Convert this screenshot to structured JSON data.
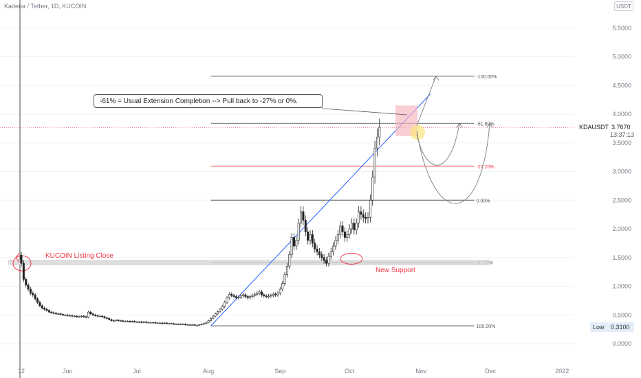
{
  "header": {
    "title": "Kadena / Tether, 1D, KUCOIN",
    "currency": "USDT"
  },
  "chart_data": {
    "type": "candlestick",
    "title": "Kadena / Tether, 1D, KUCOIN",
    "symbol": "KDAUSDT",
    "last_price": "3.7670",
    "countdown": "13:37:13",
    "low_label": "Low",
    "low_value": "0.3100",
    "y_ticks": [
      "5.5000",
      "5.0000",
      "4.5000",
      "4.0000",
      "3.5000",
      "3.0000",
      "2.5000",
      "2.0000",
      "1.5000",
      "1.0000",
      "0.5000",
      "0.0000"
    ],
    "ylim": [
      -0.1,
      5.85
    ],
    "x_ticks": [
      {
        "label": "12",
        "day": 0
      },
      {
        "label": "Jun",
        "day": 20
      },
      {
        "label": "Jul",
        "day": 50
      },
      {
        "label": "Aug",
        "day": 81
      },
      {
        "label": "Sep",
        "day": 112
      },
      {
        "label": "Oct",
        "day": 142
      },
      {
        "label": "Nov",
        "day": 173
      },
      {
        "label": "Dec",
        "day": 203
      },
      {
        "label": "2022",
        "day": 234
      }
    ],
    "fib_levels": [
      {
        "label": "100.00%",
        "price": 0.31,
        "color": "#555555"
      },
      {
        "label": "50.00%",
        "price": 1.42,
        "color": "#555555"
      },
      {
        "label": "0.00%",
        "price": 2.5,
        "color": "#555555"
      },
      {
        "label": "-27.20%",
        "price": 3.09,
        "color": "#f23645"
      },
      {
        "label": "-61.80%",
        "price": 3.84,
        "color": "#555555"
      },
      {
        "label": "-100.00%",
        "price": 4.66,
        "color": "#555555"
      }
    ],
    "fib_day_range": [
      82,
      196
    ],
    "annotations": {
      "box_text": "-61% = Usual Extension Completion --> Pull back to -27% or 0%.",
      "listing": "KUCOIN Listing Close",
      "support": "New Support"
    },
    "trendline": {
      "from": {
        "day": 82,
        "price": 0.31
      },
      "to": {
        "day": 177,
        "price": 4.35
      }
    },
    "closes": [
      1.4,
      1.12,
      1.02,
      0.95,
      0.88,
      0.85,
      0.78,
      0.72,
      0.66,
      0.62,
      0.6,
      0.58,
      0.55,
      0.54,
      0.53,
      0.52,
      0.52,
      0.51,
      0.5,
      0.5,
      0.49,
      0.49,
      0.48,
      0.48,
      0.47,
      0.47,
      0.48,
      0.47,
      0.46,
      0.55,
      0.52,
      0.5,
      0.49,
      0.48,
      0.48,
      0.47,
      0.45,
      0.44,
      0.42,
      0.4,
      0.4,
      0.41,
      0.4,
      0.4,
      0.39,
      0.39,
      0.39,
      0.38,
      0.39,
      0.38,
      0.38,
      0.38,
      0.37,
      0.38,
      0.37,
      0.37,
      0.37,
      0.37,
      0.36,
      0.36,
      0.36,
      0.35,
      0.36,
      0.35,
      0.35,
      0.35,
      0.34,
      0.34,
      0.34,
      0.34,
      0.34,
      0.33,
      0.33,
      0.33,
      0.33,
      0.32,
      0.32,
      0.33,
      0.34,
      0.35,
      0.37,
      0.4,
      0.44,
      0.48,
      0.52,
      0.56,
      0.6,
      0.65,
      0.72,
      0.8,
      0.86,
      0.84,
      0.82,
      0.8,
      0.81,
      0.83,
      0.85,
      0.82,
      0.8,
      0.82,
      0.84,
      0.86,
      0.88,
      0.9,
      0.85,
      0.83,
      0.82,
      0.83,
      0.84,
      0.86,
      0.85,
      0.88,
      0.95,
      1.05,
      1.2,
      1.35,
      1.55,
      1.85,
      1.7,
      1.8,
      2.1,
      2.3,
      2.15,
      1.95,
      1.8,
      1.9,
      1.75,
      1.65,
      1.6,
      1.55,
      1.5,
      1.45,
      1.4,
      1.52,
      1.6,
      1.7,
      1.8,
      1.9,
      2.05,
      1.95,
      1.85,
      1.9,
      2.0,
      2.1,
      1.98,
      2.1,
      2.3,
      2.25,
      2.2,
      2.18,
      2.2,
      2.5,
      2.9,
      3.4,
      3.6,
      3.77
    ]
  }
}
